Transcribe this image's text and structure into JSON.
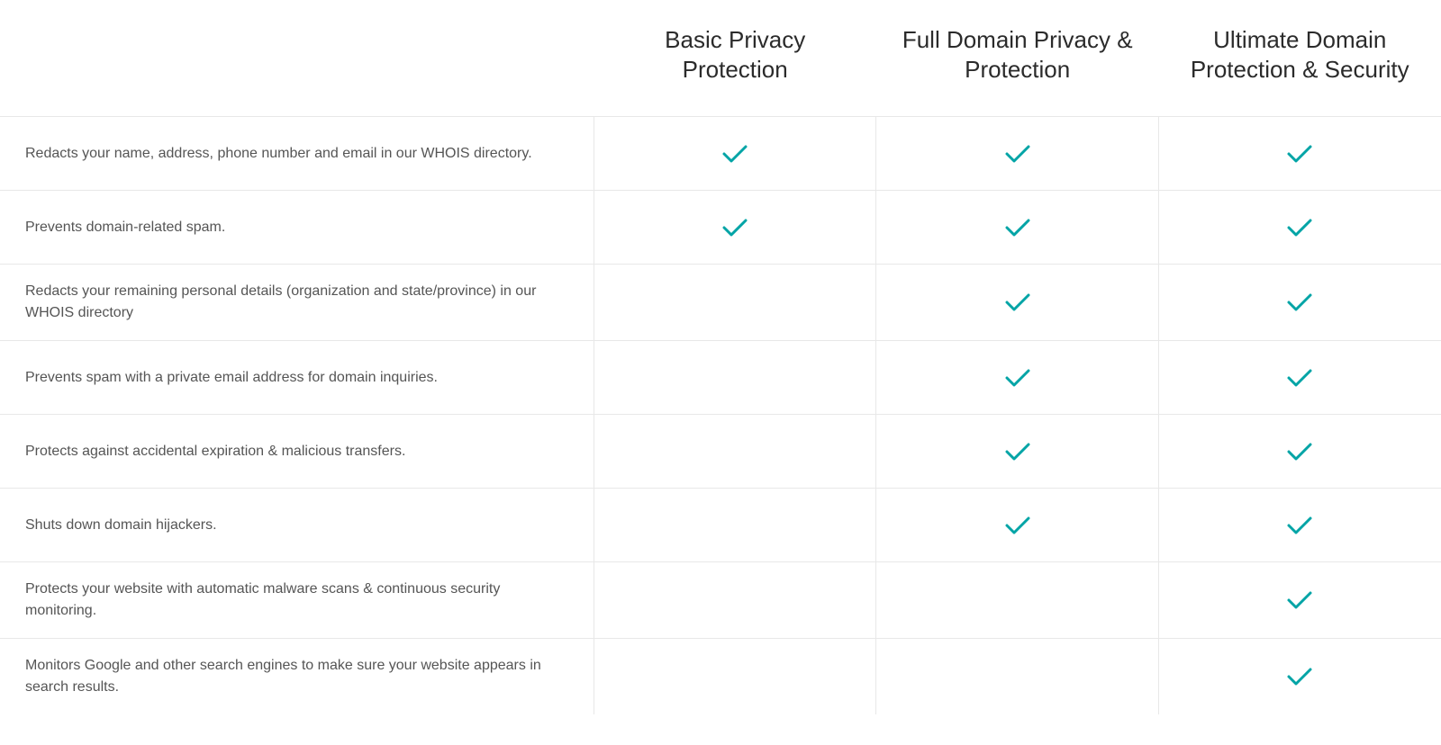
{
  "table": {
    "type": "comparison-table",
    "check_color": "#00a4a6",
    "border_color": "#e8e8e8",
    "background_color": "#ffffff",
    "heading_color": "#2b2b2b",
    "feature_text_color": "#555555",
    "heading_fontsize": 26,
    "feature_fontsize": 16,
    "columns": [
      {
        "label": "Basic Privacy Protection"
      },
      {
        "label": "Full Domain Privacy & Protection"
      },
      {
        "label": "Ultimate Domain Protection & Security"
      }
    ],
    "rows": [
      {
        "feature": "Redacts your name, address, phone number and email in our WHOIS directory.",
        "checks": [
          true,
          true,
          true
        ]
      },
      {
        "feature": "Prevents domain-related spam.",
        "checks": [
          true,
          true,
          true
        ]
      },
      {
        "feature": "Redacts your remaining personal details (organization and state/province) in our WHOIS directory",
        "checks": [
          false,
          true,
          true
        ]
      },
      {
        "feature": "Prevents spam with a private email address for domain inquiries.",
        "checks": [
          false,
          true,
          true
        ]
      },
      {
        "feature": "Protects against accidental expiration & malicious transfers.",
        "checks": [
          false,
          true,
          true
        ]
      },
      {
        "feature": "Shuts down domain hijackers.",
        "checks": [
          false,
          true,
          true
        ]
      },
      {
        "feature": "Protects your website with automatic malware scans & continuous security monitoring.",
        "checks": [
          false,
          false,
          true
        ]
      },
      {
        "feature": "Monitors Google and other search engines to make sure your website appears in search results.",
        "checks": [
          false,
          false,
          true
        ]
      }
    ]
  }
}
